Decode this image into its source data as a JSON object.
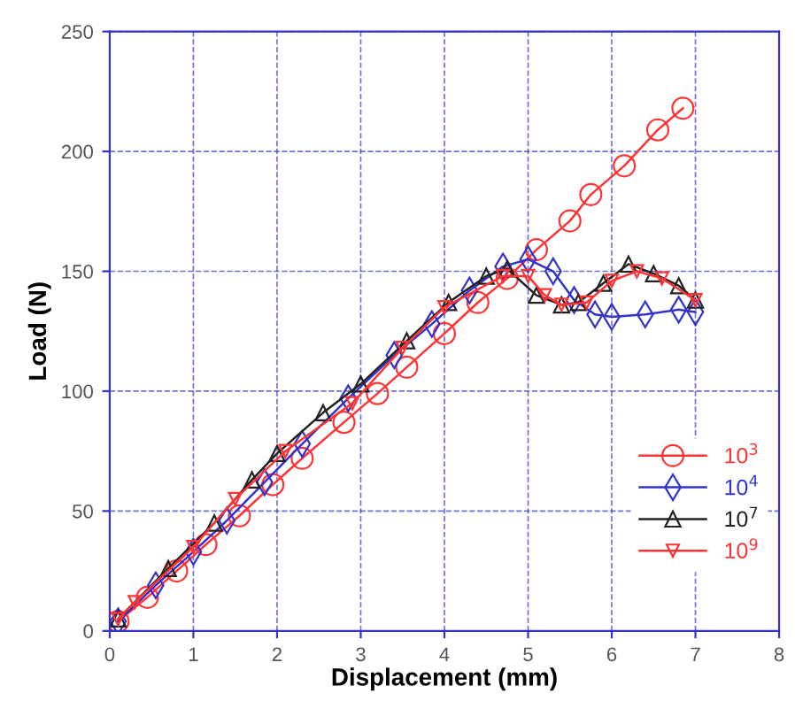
{
  "chart_data": {
    "type": "line",
    "xlabel": "Displacement (mm)",
    "ylabel": "Load (N)",
    "xlim": [
      0,
      8
    ],
    "ylim": [
      0,
      250
    ],
    "xticks": [
      0,
      1,
      2,
      3,
      4,
      5,
      6,
      7,
      8
    ],
    "yticks": [
      0,
      50,
      100,
      150,
      200,
      250
    ],
    "grid": true,
    "legend": "bottom right",
    "line_style": "solid",
    "series": [
      {
        "name": "10$^{3}$",
        "color": "#ff3333",
        "marker": "circle",
        "x": [
          0.1,
          0.45,
          0.8,
          1.15,
          1.55,
          1.95,
          2.3,
          2.8,
          3.2,
          3.55,
          4.0,
          4.4,
          4.75,
          5.1,
          5.5,
          5.75,
          6.15,
          6.55,
          6.85
        ],
        "values": [
          4,
          14,
          25,
          36,
          48,
          61,
          72,
          87,
          99,
          110,
          124,
          137,
          147,
          159,
          171,
          182,
          194,
          209,
          218
        ]
      },
      {
        "name": "10$^{4}$",
        "color": "#3333cc",
        "marker": "diamond",
        "x": [
          0.1,
          0.55,
          1.0,
          1.4,
          1.85,
          2.3,
          2.85,
          3.4,
          3.85,
          4.3,
          4.7,
          5.0,
          5.3,
          5.55,
          5.8,
          6.0,
          6.4,
          6.8,
          7.0
        ],
        "values": [
          4,
          19,
          33,
          46,
          62,
          78,
          97,
          115,
          128,
          142,
          152,
          155,
          150,
          138,
          132,
          131,
          132,
          134,
          133
        ]
      },
      {
        "name": "10$^{7}$",
        "color": "#222222",
        "marker": "triangle",
        "x": [
          0.1,
          0.7,
          1.25,
          1.7,
          2.0,
          2.55,
          3.0,
          3.55,
          4.05,
          4.5,
          4.75,
          5.1,
          5.4,
          5.6,
          5.9,
          6.2,
          6.5,
          6.8,
          7.0
        ],
        "values": [
          5,
          26,
          45,
          63,
          74,
          91,
          103,
          121,
          137,
          148,
          151,
          140,
          136,
          137,
          145,
          153,
          149,
          144,
          138
        ]
      },
      {
        "name": "10$^{9}$",
        "color": "#ff3333",
        "marker": "triangle_down",
        "x": [
          0.1,
          0.3,
          1.0,
          1.5,
          2.1,
          2.9,
          3.5,
          4.0,
          4.7,
          5.0,
          5.2,
          5.4,
          5.7,
          6.0,
          6.3,
          6.6,
          7.0
        ],
        "values": [
          5,
          12,
          35,
          55,
          75,
          95,
          118,
          135,
          148,
          148,
          140,
          136,
          137,
          146,
          150,
          147,
          138
        ]
      }
    ]
  }
}
